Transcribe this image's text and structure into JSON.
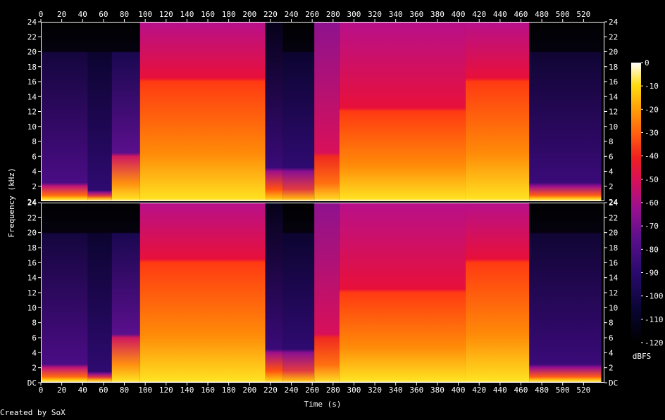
{
  "chart_data": {
    "type": "heatmap",
    "title": "",
    "xlabel": "Time (s)",
    "ylabel": "Frequency (kHz)",
    "colorbar_label": "dBFS",
    "credit": "Created by SoX",
    "x_ticks": [
      0,
      20,
      40,
      60,
      80,
      100,
      120,
      140,
      160,
      180,
      200,
      220,
      240,
      260,
      280,
      300,
      320,
      340,
      360,
      380,
      400,
      420,
      440,
      460,
      480,
      500,
      520
    ],
    "xlim": [
      0,
      540
    ],
    "y_ticks": [
      "DC",
      "2",
      "4",
      "6",
      "8",
      "10",
      "12",
      "14",
      "16",
      "18",
      "20",
      "22",
      "24"
    ],
    "ylim_khz": [
      0,
      24
    ],
    "colorbar_ticks": [
      0,
      -10,
      -20,
      -30,
      -40,
      -50,
      -60,
      -70,
      -80,
      -90,
      -100,
      -110,
      -120
    ],
    "colorbar_range_dbfs": [
      -120,
      0
    ],
    "channels": 2,
    "segments": [
      {
        "t": [
          0,
          45
        ],
        "level": "medium",
        "cutoff_khz": 20,
        "low_energy_khz": 2
      },
      {
        "t": [
          45,
          68
        ],
        "level": "low-medium",
        "cutoff_khz": 20,
        "low_energy_khz": 1
      },
      {
        "t": [
          68,
          95
        ],
        "level": "ramp",
        "cutoff_khz": 20,
        "low_energy_khz": 6
      },
      {
        "t": [
          95,
          215
        ],
        "level": "high",
        "cutoff_khz": 24,
        "low_energy_khz": 16
      },
      {
        "t": [
          215,
          232
        ],
        "level": "fade",
        "cutoff_khz": 24,
        "low_energy_khz": 4
      },
      {
        "t": [
          232,
          262
        ],
        "level": "low-medium",
        "cutoff_khz": 20,
        "low_energy_khz": 4
      },
      {
        "t": [
          262,
          286
        ],
        "level": "medium-high",
        "cutoff_khz": 24,
        "low_energy_khz": 6
      },
      {
        "t": [
          286,
          407
        ],
        "level": "high",
        "cutoff_khz": 24,
        "low_energy_khz": 12
      },
      {
        "t": [
          407,
          468
        ],
        "level": "high",
        "cutoff_khz": 24,
        "low_energy_khz": 16
      },
      {
        "t": [
          468,
          537
        ],
        "level": "fade-out",
        "cutoff_khz": 20,
        "low_energy_khz": 2
      }
    ]
  }
}
